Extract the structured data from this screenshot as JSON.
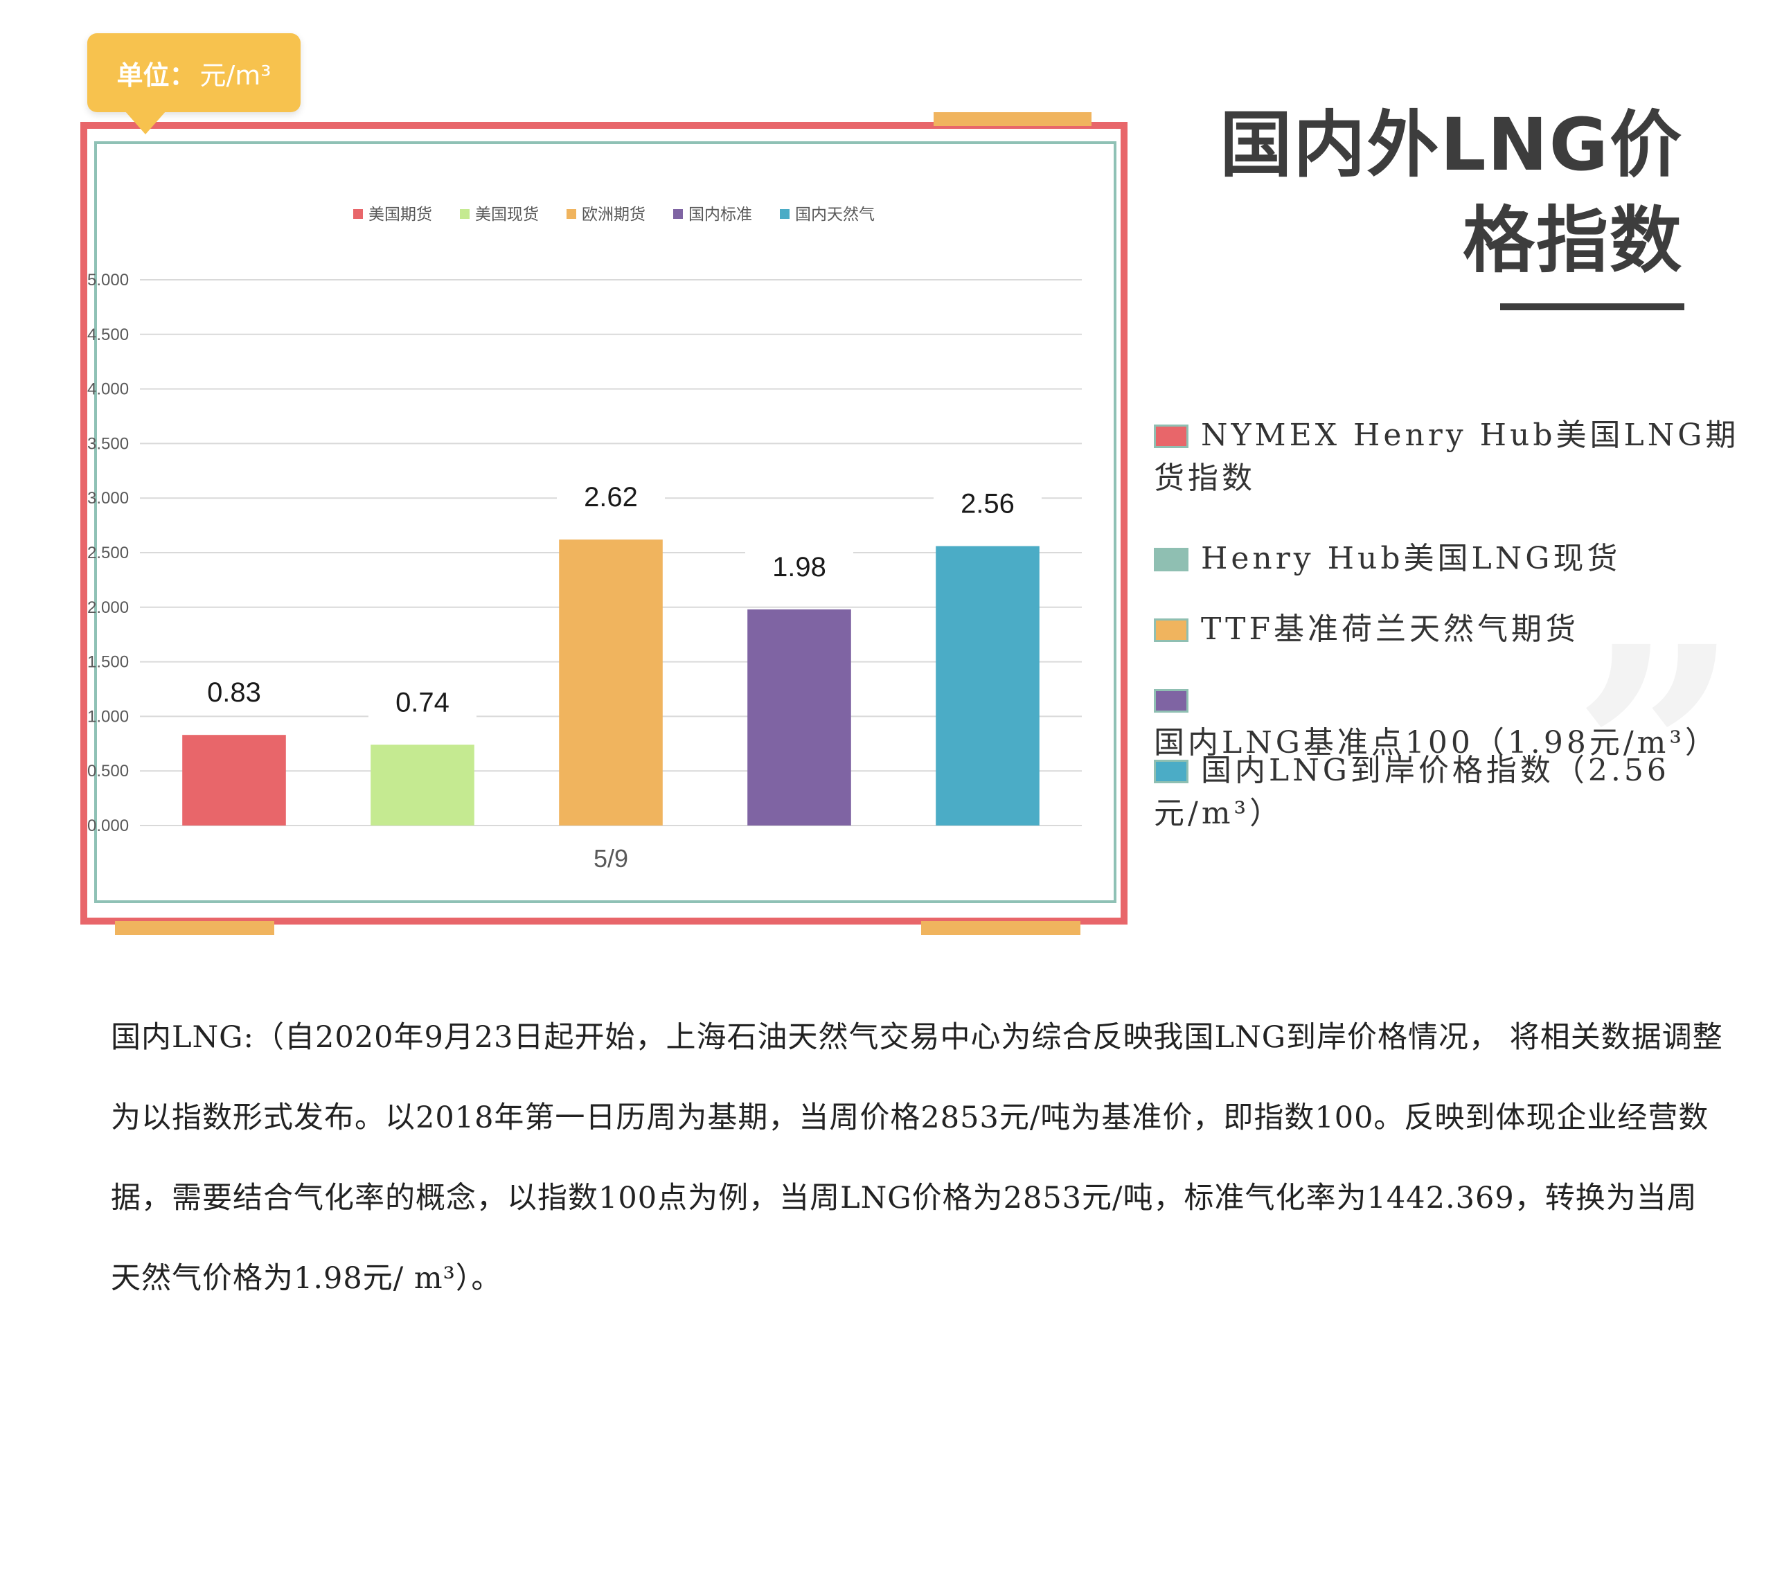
{
  "unit_label": {
    "prefix": "单位：",
    "value": "元/m³"
  },
  "title": {
    "line1": "国内外LNG价",
    "line2": "格指数"
  },
  "quote_glyph": "”",
  "legend_entries": [
    {
      "text": "NYMEX Henry Hub美国LNG期货指数",
      "color": "#e8666a"
    },
    {
      "text": "Henry Hub美国LNG现货",
      "color": "#8fbfb2"
    },
    {
      "text": "TTF基准荷兰天然气期货",
      "color": "#f0b45e"
    },
    {
      "text": "国内LNG基准点100（1.98元/m³）",
      "color": "#7f64a3"
    },
    {
      "text": "国内LNG到岸价格指数（2.56元/m³）",
      "color": "#4bacc6"
    }
  ],
  "paragraph": "国内LNG:（自2020年9月23日起开始，上海石油天然气交易中心为综合反映我国LNG到岸价格情况， 将相关数据调整为以指数形式发布。以2018年第一日历周为基期，当周价格2853元/吨为基准价，即指数100。反映到体现企业经营数据，需要结合气化率的概念，以指数100点为例，当周LNG价格为2853元/吨，标准气化率为1442.369，转换为当周天然气价格为1.98元/ m³）。",
  "chart_data": {
    "type": "bar",
    "title": "",
    "xlabel": "",
    "ylabel": "",
    "categories": [
      "5/9"
    ],
    "series": [
      {
        "name": "美国期货",
        "values": [
          0.83
        ],
        "color": "#e8666a"
      },
      {
        "name": "美国现货",
        "values": [
          0.74
        ],
        "color": "#c5ea91"
      },
      {
        "name": "欧洲期货",
        "values": [
          2.62
        ],
        "color": "#f0b45e"
      },
      {
        "name": "国内标准",
        "values": [
          1.98
        ],
        "color": "#7f64a3"
      },
      {
        "name": "国内天然气",
        "values": [
          2.56
        ],
        "color": "#4bacc6"
      }
    ],
    "ylim": [
      0,
      5
    ],
    "yticks": [
      "0.000",
      "0.500",
      "1.000",
      "1.500",
      "2.000",
      "2.500",
      "3.000",
      "3.500",
      "4.000",
      "4.500",
      "5.000"
    ],
    "data_labels": [
      "0.83",
      "0.74",
      "2.62",
      "1.98",
      "2.56"
    ],
    "grid": true,
    "legend_position": "top"
  }
}
